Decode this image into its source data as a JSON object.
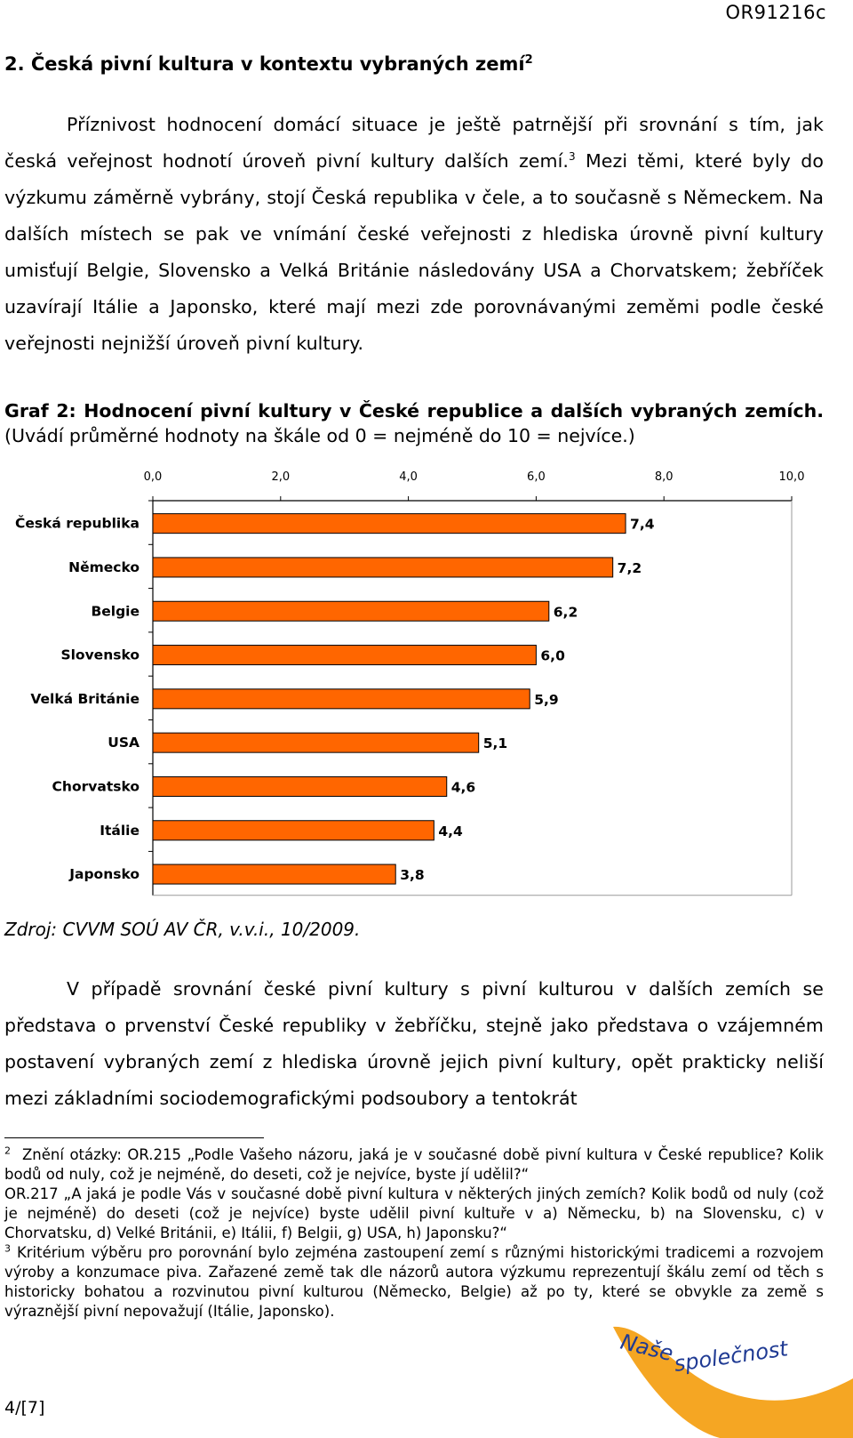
{
  "header": {
    "doc_code": "OR91216c"
  },
  "section": {
    "title": "2. Česká pivní kultura v kontextu vybraných zemí",
    "footnote_ref": "2"
  },
  "para1": {
    "a": "Příznivost hodnocení domácí situace je ještě patrnější při srovnání s tím, jak česká veřejnost hodnotí úroveň pivní kultury dalších zemí.",
    "ref": "3",
    "b": " Mezi těmi, které byly do výzkumu záměrně vybrány, stojí Česká republika v čele, a to současně s Německem. Na dalších místech se pak ve vnímání české veřejnosti z hlediska úrovně pivní kultury umisťují Belgie, Slovensko a Velká Británie následovány USA a Chorvatskem; žebříček uzavírají Itálie a Japonsko, které mají mezi zde porovnávanými zeměmi podle české veřejnosti nejnižší úroveň pivní kultury."
  },
  "graph": {
    "caption_bold": "Graf 2: Hodnocení pivní kultury v České republice a dalších vybraných zemích.",
    "caption_rest": " (Uvádí průměrné hodnoty na škále od 0 = nejméně do 10 = nejvíce.)"
  },
  "chart_data": {
    "type": "bar",
    "orientation": "horizontal",
    "categories": [
      "Česká republika",
      "Německo",
      "Belgie",
      "Slovensko",
      "Velká Británie",
      "USA",
      "Chorvatsko",
      "Itálie",
      "Japonsko"
    ],
    "values": [
      7.4,
      7.2,
      6.2,
      6.0,
      5.9,
      5.1,
      4.6,
      4.4,
      3.8
    ],
    "data_labels": [
      "7,4",
      "7,2",
      "6,2",
      "6,0",
      "5,9",
      "5,1",
      "4,6",
      "4,4",
      "3,8"
    ],
    "xlim": [
      0,
      10
    ],
    "ticks": [
      0,
      2,
      4,
      6,
      8,
      10
    ],
    "tick_labels": [
      "0,0",
      "2,0",
      "4,0",
      "6,0",
      "8,0",
      "10,0"
    ],
    "axis_position": "top",
    "bar_color": "#ff6600",
    "bar_edge_color": "#000000",
    "grid": false,
    "legend": false
  },
  "source": "Zdroj: CVVM SOÚ AV ČR, v.v.i., 10/2009.",
  "para2": "V případě srovnání české pivní kultury s pivní kulturou v dalších zemích se představa o prvenství České republiky v žebříčku, stejně jako představa o vzájemném postavení vybraných zemí z hlediska úrovně jejich pivní kultury, opět prakticky neliší mezi základními sociodemografickými podsoubory a tentokrát",
  "footnotes": [
    {
      "num": "2",
      "lines": [
        "Znění otázky: OR.215 „Podle Vašeho názoru, jaká je v současné době pivní kultura v České republice? Kolik bodů od nuly, což je nejméně, do deseti, což je nejvíce, byste jí udělil?“",
        "OR.217 „A jaká je podle Vás v současné době pivní kultura v některých jiných zemích? Kolik bodů od nuly (což je nejméně) do deseti (což je nejvíce) byste udělil pivní kultuře v a) Německu, b) na Slovensku, c) v Chorvatsku, d) Velké Británii, e) Itálii, f) Belgii, g) USA, h) Japonsku?“"
      ]
    },
    {
      "num": "3",
      "lines": [
        "Kritérium výběru pro porovnání bylo zejména zastoupení zemí s různými historickými tradicemi a rozvojem výroby a konzumace piva. Zařazené země tak dle názorů autora výzkumu reprezentují škálu zemí od těch s historicky bohatou a rozvinutou pivní kulturou (Německo, Belgie) až po ty, které se obvykle za země s výraznější pivní nepovažují (Itálie, Japonsko)."
      ]
    }
  ],
  "footer": {
    "page": "4/[7]",
    "logo_text": "Naše společnost",
    "logo_color": "#f5a623",
    "logo_text_color": "#1f3a93"
  }
}
